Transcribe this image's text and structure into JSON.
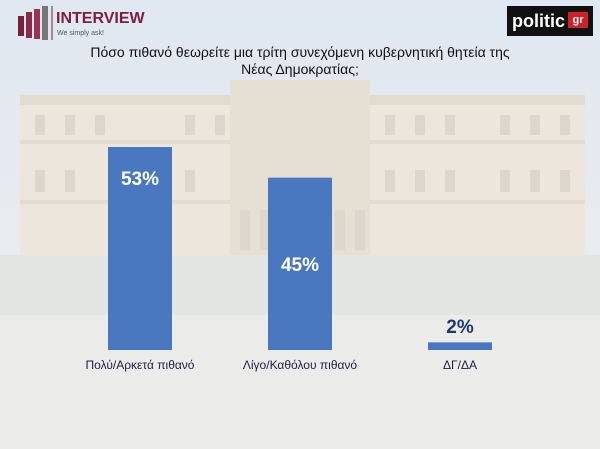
{
  "chart_data": {
    "type": "bar",
    "title": "Πόσο πιθανό θεωρείτε μια τρίτη συνεχόμενη κυβερνητική θητεία της Νέας Δημοκρατίας;",
    "categories": [
      "Πολύ/Αρκετά πιθανό",
      "Λίγο/Καθόλου πιθανό",
      "ΔΓ/ΔΑ"
    ],
    "values": [
      53,
      45,
      2
    ],
    "value_labels": [
      "53%",
      "45%",
      "2%"
    ],
    "color": "#4a78c0"
  },
  "logos": {
    "interview": "INTERVIEW",
    "interview_tagline": "We simply ask!",
    "politic": "politic",
    "politic_suffix": "gr"
  }
}
